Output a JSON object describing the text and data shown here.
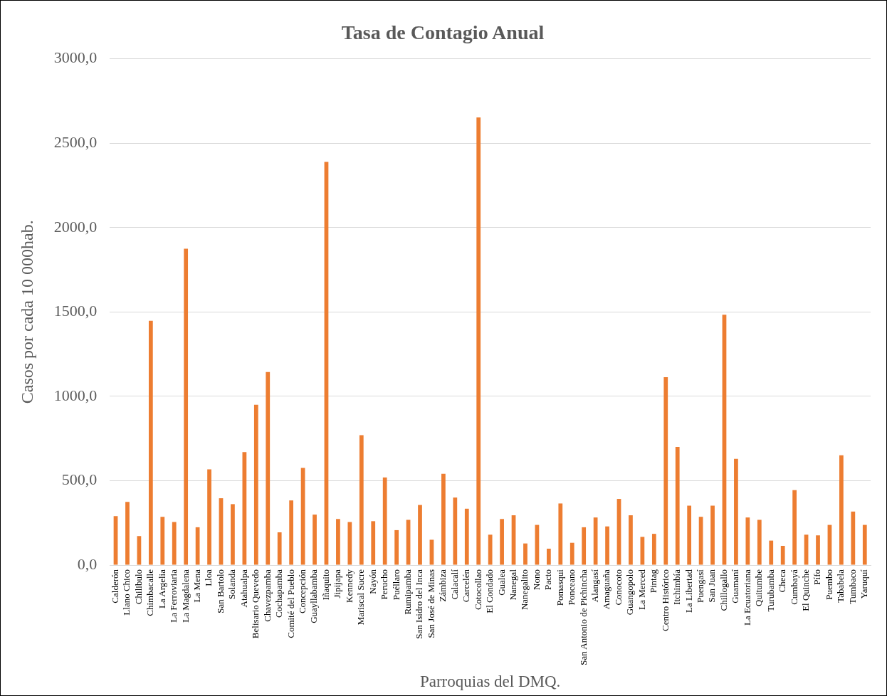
{
  "chart_data": {
    "type": "bar",
    "title": "Tasa de Contagio Anual",
    "xlabel": "Parroquias del DMQ.",
    "ylabel": "Casos por cada 10 000hab.",
    "categories": [
      "Calderón",
      "Llano Chico",
      "Chilibulo",
      "Chimbacalle",
      "La Argelia",
      "La Ferroviaria",
      "La Magdalena",
      "La Mena",
      "Lloa",
      "San Bartolo",
      "Solanda",
      "Atahualpa",
      "Belisario Quevedo",
      "Chavezpamba",
      "Cochapamba",
      "Comité del Pueblo",
      "Concepción",
      "Guayllabamba",
      "Iñaquito",
      "Jipijapa",
      "Kennedy",
      "Mariscal Sucre",
      "Nayón",
      "Perucho",
      "Puéllaro",
      "Rumipamba",
      "San Isidro del Inca",
      "San José de Minas",
      "Zámbiza",
      "Calacalí",
      "Carcelén",
      "Cotocollao",
      "El Condado",
      "Gualea",
      "Nanegal",
      "Nanegalito",
      "Nono",
      "Pacto",
      "Pomasqui",
      "Ponceano",
      "San Antonio de Pichincha",
      "Alangasí",
      "Amaguaña",
      "Conocoto",
      "Guangopolo",
      "La Merced",
      "Pintag",
      "Centro Histórico",
      "Itchimbía",
      "La Libertad",
      "Puengasí",
      "San Juan",
      "Chillogallo",
      "Guamaní",
      "La Ecuatoriana",
      "Quitumbe",
      "Turubamba",
      "Checa",
      "Cumbayá",
      "El Quinche",
      "Pífo",
      "Puembo",
      "Tababela",
      "Tumbaco",
      "Yaruquí"
    ],
    "values": [
      290,
      374,
      172,
      1447,
      286,
      255,
      1874,
      224,
      567,
      396,
      361,
      669,
      950,
      1144,
      194,
      383,
      576,
      299,
      2389,
      273,
      255,
      770,
      260,
      519,
      207,
      268,
      356,
      150,
      541,
      400,
      334,
      2653,
      180,
      273,
      295,
      128,
      238,
      97,
      365,
      132,
      224,
      282,
      229,
      392,
      295,
      167,
      185,
      1113,
      700,
      352,
      286,
      352,
      1483,
      629,
      282,
      268,
      145,
      114,
      444,
      180,
      176,
      238,
      651,
      317,
      238
    ],
    "color": "#ed7d31",
    "ylim": [
      0,
      3000
    ],
    "yticks": [
      {
        "value": 0,
        "label": "0,0"
      },
      {
        "value": 500,
        "label": "500,0"
      },
      {
        "value": 1000,
        "label": "1000,0"
      },
      {
        "value": 1500,
        "label": "1500,0"
      },
      {
        "value": 2000,
        "label": "2000,0"
      },
      {
        "value": 2500,
        "label": "2500,0"
      },
      {
        "value": 3000,
        "label": "3000,0"
      }
    ],
    "grid": "y"
  }
}
